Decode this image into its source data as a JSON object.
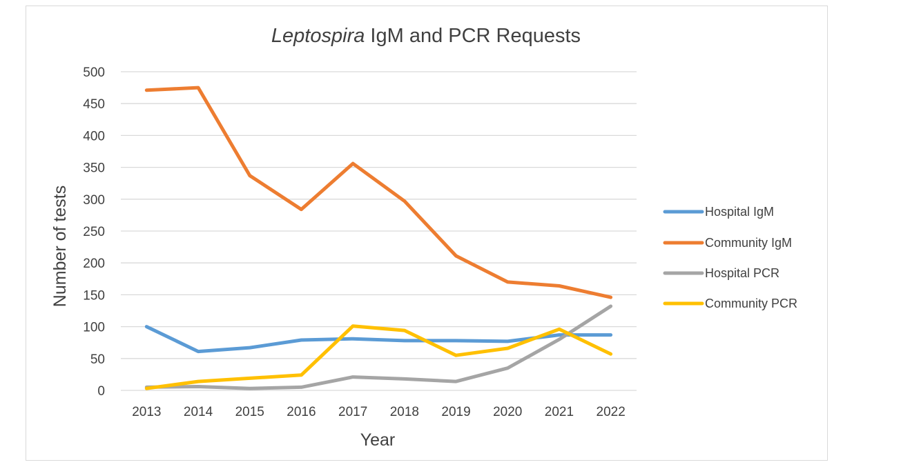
{
  "chart_data": {
    "type": "line",
    "title_italic": "Leptospira",
    "title_rest": " IgM and PCR Requests",
    "xlabel": "Year",
    "ylabel": "Number of tests",
    "ylim": [
      0,
      500
    ],
    "yticks": [
      0,
      50,
      100,
      150,
      200,
      250,
      300,
      350,
      400,
      450,
      500
    ],
    "categories": [
      "2013",
      "2014",
      "2015",
      "2016",
      "2017",
      "2018",
      "2019",
      "2020",
      "2021",
      "2022"
    ],
    "grid": true,
    "legend_position": "right",
    "series": [
      {
        "name": "Hospital IgM",
        "color": "#5b9bd5",
        "values": [
          100,
          61,
          67,
          79,
          81,
          78,
          78,
          77,
          87,
          87
        ]
      },
      {
        "name": "Community IgM",
        "color": "#ed7d31",
        "values": [
          471,
          475,
          337,
          284,
          356,
          297,
          211,
          170,
          164,
          146
        ]
      },
      {
        "name": "Hospital PCR",
        "color": "#a5a5a5",
        "values": [
          5,
          6,
          3,
          5,
          21,
          18,
          14,
          35,
          80,
          132
        ]
      },
      {
        "name": "Community PCR",
        "color": "#ffc000",
        "values": [
          3,
          14,
          19,
          24,
          101,
          94,
          55,
          66,
          96,
          57
        ]
      }
    ]
  }
}
